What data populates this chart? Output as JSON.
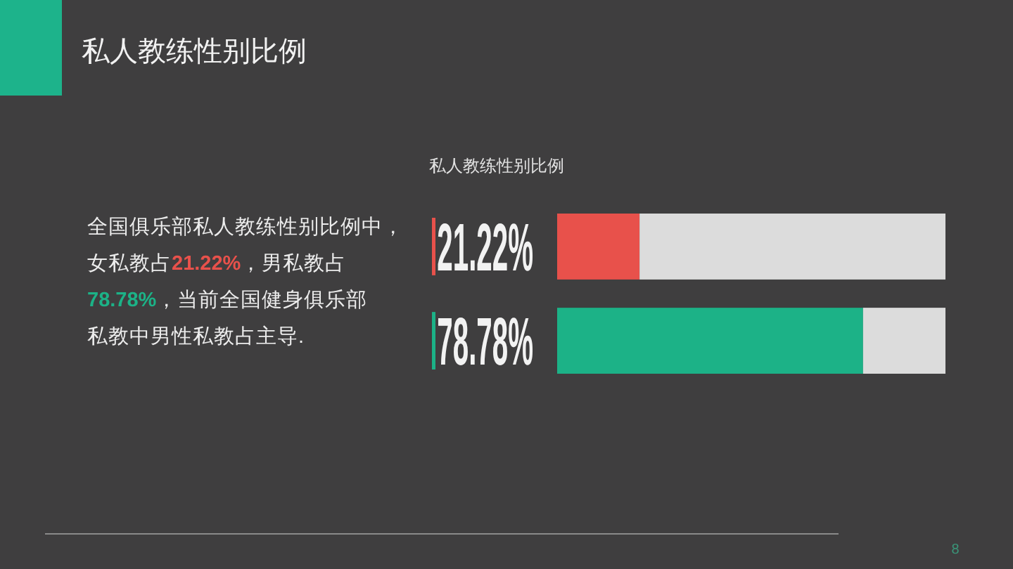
{
  "chart_data": {
    "type": "bar",
    "orientation": "horizontal",
    "stacked": true,
    "title": "私人教练性别比例",
    "subtitle": "私人教练性别比例",
    "categories": [
      null,
      null
    ],
    "series": [
      {
        "colors": [
          "#e8514b",
          "#1cb287"
        ],
        "values": [
          21.22,
          78.78
        ],
        "value_labels": [
          "21.22%",
          "78.78%"
        ]
      },
      {
        "color": "#dcdcdc",
        "values": [
          78.78,
          21.22
        ]
      }
    ],
    "xlim": [
      0,
      100
    ],
    "annotations": [
      "全国俱乐部私人教练性别比例中，女私教占21.22%，男私教占78.78%，当前全国健身俱乐部私教中男性私教占主导.",
      "8"
    ]
  }
}
